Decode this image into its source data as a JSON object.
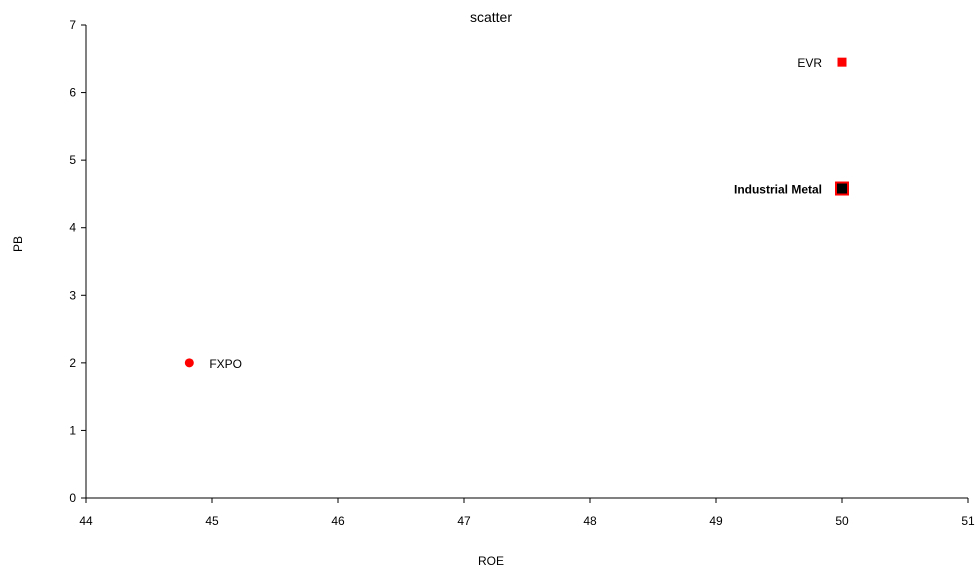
{
  "chart_data": {
    "type": "scatter",
    "title": "scatter",
    "xlabel": "ROE",
    "ylabel": "PB",
    "xlim": [
      44,
      51
    ],
    "ylim": [
      0,
      7
    ],
    "x_ticks": [
      "44",
      "45",
      "46",
      "47",
      "48",
      "49",
      "50",
      "51"
    ],
    "y_ticks": [
      "0",
      "1",
      "2",
      "3",
      "4",
      "5",
      "6",
      "7"
    ],
    "grid": false,
    "points": [
      {
        "label": "FXPO",
        "x": 44.82,
        "y": 2.0,
        "marker": "circle",
        "color": "#ff0000",
        "highlight": false
      },
      {
        "label": "EVR",
        "x": 50.0,
        "y": 6.45,
        "marker": "square",
        "color": "#ff0000",
        "highlight": false
      },
      {
        "label": "Industrial Metal",
        "x": 50.0,
        "y": 4.58,
        "marker": "square",
        "color": "#000000",
        "border_color": "#ff0000",
        "highlight": true
      }
    ]
  }
}
